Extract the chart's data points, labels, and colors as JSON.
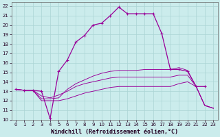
{
  "xlabel": "Windchill (Refroidissement éolien,°C)",
  "xlim": [
    -0.5,
    23.5
  ],
  "ylim": [
    10,
    22.4
  ],
  "xticks": [
    0,
    1,
    2,
    3,
    4,
    5,
    6,
    7,
    8,
    9,
    10,
    11,
    12,
    13,
    14,
    15,
    16,
    17,
    18,
    19,
    20,
    21,
    22,
    23
  ],
  "yticks": [
    10,
    11,
    12,
    13,
    14,
    15,
    16,
    17,
    18,
    19,
    20,
    21,
    22
  ],
  "bg_color": "#cbecec",
  "grid_color": "#aad4d4",
  "line_color": "#990099",
  "curves": {
    "curve1": {
      "x": [
        0,
        1,
        2,
        3,
        4,
        5,
        6,
        7,
        8,
        9,
        10,
        11,
        12,
        13,
        14,
        15,
        16,
        17,
        18,
        19,
        20,
        21,
        22
      ],
      "y": [
        13.2,
        13.1,
        13.1,
        13.0,
        10.1,
        15.1,
        16.3,
        18.2,
        18.9,
        20.0,
        20.2,
        21.0,
        21.9,
        21.2,
        21.2,
        21.2,
        21.2,
        19.1,
        15.3,
        15.3,
        15.1,
        13.5,
        13.5
      ]
    },
    "curve2": {
      "x": [
        0,
        1,
        2,
        3,
        4,
        5,
        6,
        7,
        8,
        9,
        10,
        11,
        12,
        13,
        14,
        15,
        16,
        17,
        18,
        19,
        20,
        21,
        22,
        23
      ],
      "y": [
        13.2,
        13.1,
        13.1,
        12.2,
        12.2,
        12.3,
        13.2,
        13.8,
        14.2,
        14.6,
        14.9,
        15.1,
        15.2,
        15.2,
        15.2,
        15.3,
        15.3,
        15.3,
        15.3,
        15.5,
        15.2,
        13.5,
        11.5,
        11.2
      ]
    },
    "curve3": {
      "x": [
        0,
        1,
        2,
        3,
        4,
        5,
        6,
        7,
        8,
        9,
        10,
        11,
        12,
        13,
        14,
        15,
        16,
        17,
        18,
        19,
        20,
        21,
        22,
        23
      ],
      "y": [
        13.2,
        13.1,
        13.1,
        12.5,
        12.3,
        12.6,
        13.0,
        13.5,
        13.8,
        14.0,
        14.2,
        14.4,
        14.5,
        14.5,
        14.5,
        14.5,
        14.5,
        14.5,
        14.5,
        14.7,
        14.7,
        13.5,
        11.5,
        11.2
      ]
    },
    "curve4": {
      "x": [
        0,
        1,
        2,
        3,
        4,
        5,
        6,
        7,
        8,
        9,
        10,
        11,
        12,
        13,
        14,
        15,
        16,
        17,
        18,
        19,
        20,
        21,
        22,
        23
      ],
      "y": [
        13.2,
        13.1,
        13.1,
        12.0,
        12.0,
        12.0,
        12.2,
        12.5,
        12.8,
        13.0,
        13.2,
        13.4,
        13.5,
        13.5,
        13.5,
        13.5,
        13.5,
        13.5,
        13.5,
        13.8,
        14.0,
        13.5,
        11.5,
        11.2
      ]
    }
  },
  "tick_fontsize": 5,
  "xlabel_fontsize": 6,
  "linewidth": 0.9,
  "marker_size": 3.5
}
